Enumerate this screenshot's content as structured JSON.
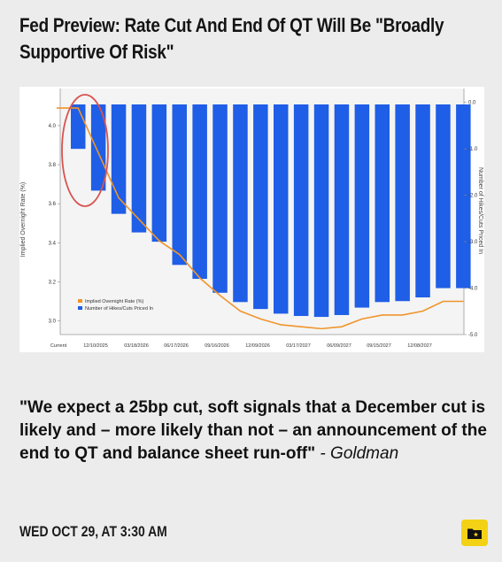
{
  "article": {
    "headline": "Fed Preview: Rate Cut And End Of QT Will Be \"Broadly Supportive Of Risk\"",
    "quote_text": "\"We expect a 25bp cut, soft signals that a December cut is likely and – more likely than not – an announcement of the end to QT and balance sheet run-off\"",
    "quote_attrib": " - Goldman",
    "timestamp": "WED OCT 29, AT 3:30 AM",
    "save_icon": "folder-star-icon"
  },
  "colors": {
    "accent": "#f3d215",
    "bar": "#1f5ee6",
    "line": "#f0952a",
    "circle": "#d9534f"
  },
  "chart_data": {
    "type": "bar",
    "left_axis": {
      "label": "Implied Overnight Rate (%)",
      "ticks": [
        "4.0",
        "3.8",
        "3.6",
        "3.4",
        "3.2",
        "3.0"
      ],
      "range": [
        2.93,
        4.19
      ]
    },
    "right_axis": {
      "label": "Number of Hikes/Cuts Priced In",
      "ticks": [
        "0.0",
        "-1.0",
        "-2.0",
        "-3.0",
        "-4.0",
        "-5.0"
      ],
      "range": [
        -5.0,
        0.3
      ]
    },
    "x_tick_labels": [
      "Current",
      "12/10/2025",
      "03/18/2026",
      "06/17/2026",
      "09/16/2026",
      "12/09/2026",
      "03/17/2027",
      "06/09/2027",
      "09/15/2027",
      "12/08/2027"
    ],
    "legend": [
      "Implied Overnight Rate (%)",
      "Number of Hikes/Cuts Priced In"
    ],
    "legend_position": "bottom-left",
    "bars": [
      -1.0,
      -1.9,
      -2.4,
      -2.8,
      -3.0,
      -3.5,
      -3.8,
      -4.1,
      -4.3,
      -4.45,
      -4.55,
      -4.6,
      -4.62,
      -4.58,
      -4.42,
      -4.3,
      -4.28,
      -4.2,
      -4.0,
      -4.0
    ],
    "rate_line": [
      4.09,
      3.86,
      3.63,
      3.52,
      3.41,
      3.34,
      3.22,
      3.13,
      3.05,
      3.01,
      2.98,
      2.97,
      2.96,
      2.97,
      3.01,
      3.03,
      3.03,
      3.05,
      3.1,
      3.1
    ]
  }
}
